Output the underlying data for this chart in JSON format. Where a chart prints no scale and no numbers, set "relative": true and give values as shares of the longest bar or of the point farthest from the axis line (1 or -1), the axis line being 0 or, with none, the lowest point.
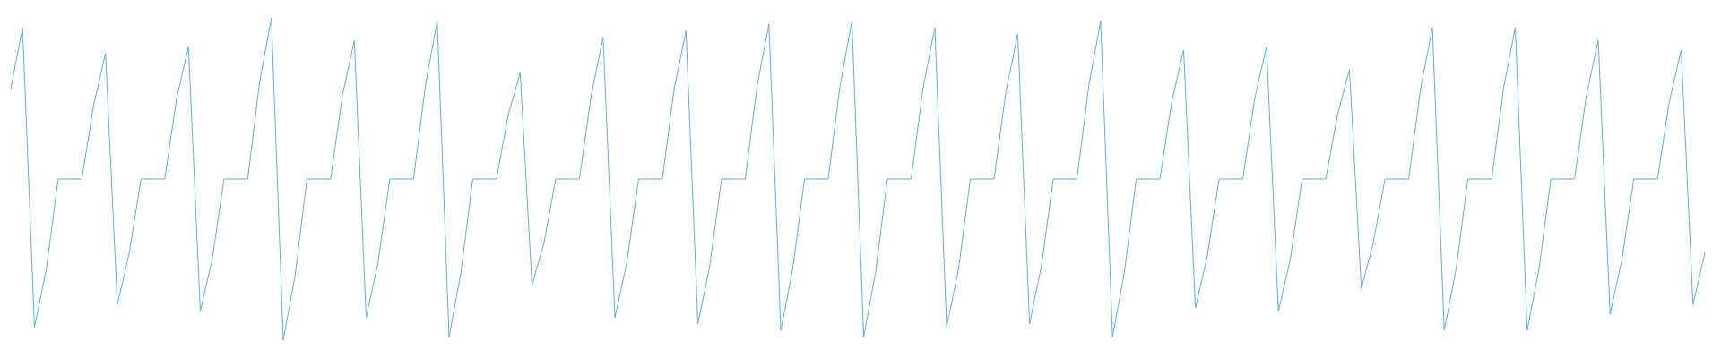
{
  "chart_data": {
    "type": "line",
    "relative": true,
    "categories": [
      null,
      null,
      null,
      null,
      null,
      null,
      null,
      null,
      null,
      null,
      null,
      null,
      null,
      null,
      null,
      null,
      null,
      null,
      null,
      null,
      null,
      null,
      null,
      null,
      null,
      null,
      null,
      null,
      null,
      null,
      null,
      null,
      null,
      null,
      null,
      null,
      null,
      null,
      null,
      null,
      null,
      null,
      null,
      null,
      null,
      null,
      null,
      null,
      null,
      null,
      null,
      null,
      null,
      null,
      null,
      null,
      null,
      null,
      null,
      null,
      null,
      null,
      null,
      null,
      null,
      null,
      null,
      null,
      null,
      null,
      null,
      null,
      null,
      null,
      null,
      null,
      null,
      null,
      null,
      null,
      null,
      null,
      null,
      null,
      null,
      null,
      null,
      null,
      null,
      null,
      null,
      null,
      null,
      null,
      null,
      null,
      null,
      null,
      null,
      null,
      null,
      null,
      null,
      null,
      null,
      null,
      null,
      null,
      null,
      null,
      null,
      null,
      null,
      null,
      null,
      null,
      null,
      null,
      null,
      null,
      null,
      null,
      null,
      null,
      null,
      null,
      null,
      null,
      null,
      null,
      null,
      null,
      null,
      null,
      null,
      null,
      null,
      null,
      null,
      null,
      null,
      null,
      null,
      null
    ],
    "series": [
      {
        "color": "#5dade2",
        "values": [
          0.78,
          0.97,
          0.04,
          0.22,
          0.5,
          0.5,
          0.5,
          0.73,
          0.89,
          0.11,
          0.27,
          0.5,
          0.5,
          0.5,
          0.75,
          0.91,
          0.09,
          0.25,
          0.5,
          0.5,
          0.5,
          0.8,
          1,
          0,
          0.2,
          0.5,
          0.5,
          0.5,
          0.76,
          0.93,
          0.07,
          0.24,
          0.5,
          0.5,
          0.5,
          0.79,
          0.99,
          0.01,
          0.21,
          0.5,
          0.5,
          0.5,
          0.7,
          0.83,
          0.17,
          0.3,
          0.5,
          0.5,
          0.5,
          0.76,
          0.94,
          0.07,
          0.24,
          0.5,
          0.5,
          0.5,
          0.78,
          0.96,
          0.05,
          0.23,
          0.5,
          0.5,
          0.5,
          0.79,
          0.98,
          0.03,
          0.22,
          0.5,
          0.5,
          0.5,
          0.79,
          0.99,
          0.01,
          0.21,
          0.5,
          0.5,
          0.5,
          0.78,
          0.97,
          0.04,
          0.22,
          0.5,
          0.5,
          0.5,
          0.77,
          0.95,
          0.05,
          0.23,
          0.5,
          0.5,
          0.5,
          0.79,
          0.99,
          0.01,
          0.21,
          0.5,
          0.5,
          0.5,
          0.74,
          0.9,
          0.1,
          0.26,
          0.5,
          0.5,
          0.5,
          0.75,
          0.91,
          0.09,
          0.25,
          0.5,
          0.5,
          0.5,
          0.7,
          0.84,
          0.16,
          0.3,
          0.5,
          0.5,
          0.5,
          0.78,
          0.97,
          0.03,
          0.22,
          0.5,
          0.5,
          0.5,
          0.78,
          0.97,
          0.03,
          0.22,
          0.5,
          0.5,
          0.5,
          0.76,
          0.93,
          0.08,
          0.25,
          0.5,
          0.5,
          0.5,
          0.74,
          0.9,
          0.11,
          0.27
        ]
      }
    ]
  }
}
